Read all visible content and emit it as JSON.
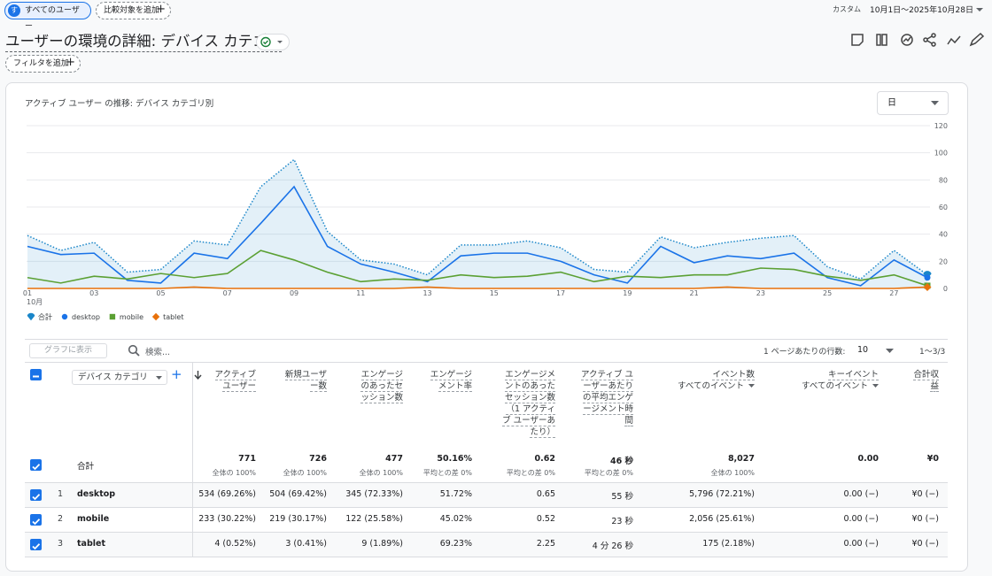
{
  "header": {
    "segment_icon": "す",
    "segment_chip": "すべてのユーザー",
    "compare_chip": "比較対象を追加",
    "date_label": "カスタム",
    "date_range": "10月1日～2025年10月28日",
    "title": "ユーザーの環境の詳細: デバイス カテゴリ",
    "filter_chip": "フィルタを追加"
  },
  "chart_data": {
    "type": "line",
    "title": "アクティブ ユーザー の推移: デバイス カテゴリ別",
    "granularity": "日",
    "categories": [
      "01",
      null,
      "03",
      null,
      "05",
      null,
      "07",
      null,
      "09",
      null,
      "11",
      null,
      "13",
      null,
      "15",
      null,
      "17",
      null,
      "19",
      null,
      "21",
      null,
      "23",
      null,
      "25",
      null,
      "27",
      null
    ],
    "x_sublabel": "10月",
    "ylim": [
      0,
      120
    ],
    "yticks": [
      0,
      20,
      40,
      60,
      80,
      100,
      120
    ],
    "y_axis_side": "right",
    "grid": true,
    "series": [
      {
        "name": "合計",
        "color": "#1a86c9",
        "style": "dotted",
        "area": true,
        "marker": "pin",
        "values": [
          39,
          28,
          34,
          12,
          14,
          35,
          32,
          75,
          95,
          42,
          21,
          18,
          10,
          32,
          32,
          35,
          30,
          14,
          12,
          38,
          30,
          34,
          37,
          39,
          16,
          7,
          28,
          10
        ]
      },
      {
        "name": "desktop",
        "color": "#1a73e8",
        "style": "solid",
        "area": false,
        "marker": "circle",
        "values": [
          31,
          25,
          26,
          6,
          4,
          26,
          22,
          48,
          75,
          31,
          18,
          12,
          5,
          24,
          26,
          26,
          20,
          10,
          4,
          31,
          19,
          24,
          22,
          26,
          8,
          2,
          21,
          8
        ]
      },
      {
        "name": "mobile",
        "color": "#5ba033",
        "style": "solid",
        "area": false,
        "marker": "square",
        "values": [
          8,
          4,
          9,
          7,
          11,
          8,
          11,
          28,
          21,
          12,
          5,
          7,
          6,
          10,
          8,
          9,
          12,
          5,
          9,
          8,
          10,
          10,
          15,
          14,
          9,
          6,
          10,
          2
        ]
      },
      {
        "name": "tablet",
        "color": "#e8710a",
        "style": "solid",
        "area": false,
        "marker": "diamond",
        "values": [
          0,
          0,
          0,
          0,
          0,
          1,
          0,
          0,
          0,
          0,
          0,
          0,
          1,
          0,
          0,
          0,
          0,
          0,
          0,
          0,
          0,
          1,
          0,
          0,
          0,
          0,
          0,
          1
        ]
      }
    ]
  },
  "table": {
    "toolbar": {
      "show_in_chart": "グラフに表示",
      "search_placeholder": "検索...",
      "rows_per_page_label": "1 ページあたりの行数:",
      "rows_per_page": "10",
      "pagination": "1〜3/3"
    },
    "dimension_header": "デバイス カテゴリ",
    "columns": [
      {
        "title": "アクティブ ユーザー",
        "sorted": true
      },
      {
        "title": "新規ユーザー数"
      },
      {
        "title": "エンゲージのあったセッション数"
      },
      {
        "title": "エンゲージメント率"
      },
      {
        "title": "エンゲージメントのあったセッション数（1 アクティブ ユーザーあたり）"
      },
      {
        "title": "アクティブ ユーザーあたりの平均エンゲージメント時間"
      },
      {
        "title": "イベント数",
        "subtitle": "すべてのイベント"
      },
      {
        "title": "キーイベント",
        "subtitle": "すべてのイベント"
      },
      {
        "title": "合計収益"
      }
    ],
    "totals": {
      "label": "合計",
      "cells": [
        {
          "value": "771",
          "note": "全体の 100%"
        },
        {
          "value": "726",
          "note": "全体の 100%"
        },
        {
          "value": "477",
          "note": "全体の 100%"
        },
        {
          "value": "50.16%",
          "note": "平均との差 0%"
        },
        {
          "value": "0.62",
          "note": "平均との差 0%"
        },
        {
          "value": "46 秒",
          "note": "平均との差 0%"
        },
        {
          "value": "8,027",
          "note": "全体の 100%"
        },
        {
          "value": "0.00"
        },
        {
          "value": "¥0"
        }
      ]
    },
    "rows": [
      {
        "index": "1",
        "name": "desktop",
        "cells": [
          "534 (69.26%)",
          "504 (69.42%)",
          "345 (72.33%)",
          "51.72%",
          "0.65",
          "55 秒",
          "5,796 (72.21%)",
          "0.00 (−)",
          "¥0 (−)"
        ]
      },
      {
        "index": "2",
        "name": "mobile",
        "cells": [
          "233 (30.22%)",
          "219 (30.17%)",
          "122 (25.58%)",
          "45.02%",
          "0.52",
          "23 秒",
          "2,056 (25.61%)",
          "0.00 (−)",
          "¥0 (−)"
        ]
      },
      {
        "index": "3",
        "name": "tablet",
        "cells": [
          "4 (0.52%)",
          "3 (0.41%)",
          "9 (1.89%)",
          "69.23%",
          "2.25",
          "4 分 26 秒",
          "175 (2.18%)",
          "0.00 (−)",
          "¥0 (−)"
        ]
      }
    ]
  }
}
